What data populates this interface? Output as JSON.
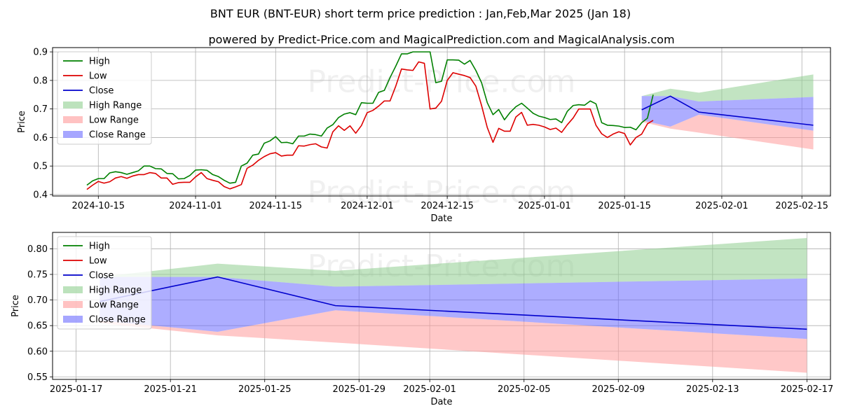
{
  "header": {
    "title": "BNT EUR (BNT-EUR) short term price prediction : Jan,Feb,Mar 2025 (Jan 18)",
    "subtitle": "powered by Predict-Price.com and MagicalPrediction.com and MagicalAnalysis.com"
  },
  "watermark": {
    "text": "Predict-Price.com"
  },
  "colors": {
    "high": "#008000",
    "low": "#dd0000",
    "close": "#0000cc",
    "high_range": "#8fce8f",
    "low_range": "#ff9a9a",
    "close_range": "#6a6aff"
  },
  "legend": {
    "items": [
      {
        "label": "High",
        "kind": "line",
        "color_key": "high"
      },
      {
        "label": "Low",
        "kind": "line",
        "color_key": "low"
      },
      {
        "label": "Close",
        "kind": "line",
        "color_key": "close"
      },
      {
        "label": "High Range",
        "kind": "patch",
        "color_key": "high_range"
      },
      {
        "label": "Low Range",
        "kind": "patch",
        "color_key": "low_range"
      },
      {
        "label": "Close Range",
        "kind": "patch",
        "color_key": "close_range"
      }
    ]
  },
  "chart_data": [
    {
      "type": "line",
      "title": "",
      "xlabel": "Date",
      "ylabel": "Price",
      "x_axis": {
        "type": "date",
        "start": "2024-10-07",
        "end": "2025-02-20"
      },
      "ylim": [
        0.395,
        0.915
      ],
      "x_ticks": [
        "2024-10-15",
        "2024-11-01",
        "2024-11-15",
        "2024-12-01",
        "2024-12-15",
        "2025-01-01",
        "2025-01-15",
        "2025-02-01",
        "2025-02-15"
      ],
      "y_ticks": [
        0.4,
        0.5,
        0.6,
        0.7,
        0.8,
        0.9
      ],
      "grid": true,
      "legend_position": "upper-left",
      "history": {
        "start_date": "2024-10-13",
        "high": [
          0.433,
          0.448,
          0.456,
          0.456,
          0.476,
          0.48,
          0.477,
          0.471,
          0.477,
          0.483,
          0.5,
          0.5,
          0.491,
          0.49,
          0.474,
          0.473,
          0.455,
          0.456,
          0.467,
          0.486,
          0.487,
          0.485,
          0.47,
          0.463,
          0.45,
          0.44,
          0.443,
          0.5,
          0.51,
          0.538,
          0.542,
          0.58,
          0.588,
          0.603,
          0.582,
          0.583,
          0.578,
          0.605,
          0.605,
          0.612,
          0.61,
          0.605,
          0.633,
          0.645,
          0.67,
          0.682,
          0.687,
          0.68,
          0.722,
          0.72,
          0.72,
          0.758,
          0.765,
          0.81,
          0.85,
          0.893,
          0.893,
          0.9,
          0.9,
          0.9,
          0.9,
          0.792,
          0.797,
          0.872,
          0.872,
          0.871,
          0.857,
          0.87,
          0.835,
          0.792,
          0.722,
          0.68,
          0.698,
          0.662,
          0.688,
          0.708,
          0.72,
          0.703,
          0.685,
          0.675,
          0.67,
          0.663,
          0.665,
          0.652,
          0.692,
          0.712,
          0.715,
          0.713,
          0.728,
          0.718,
          0.652,
          0.643,
          0.642,
          0.64,
          0.635,
          0.636,
          0.627,
          0.652,
          0.668,
          0.75
        ],
        "low": [
          0.418,
          0.433,
          0.446,
          0.44,
          0.445,
          0.458,
          0.463,
          0.457,
          0.465,
          0.47,
          0.47,
          0.477,
          0.474,
          0.458,
          0.458,
          0.436,
          0.442,
          0.443,
          0.443,
          0.462,
          0.477,
          0.456,
          0.45,
          0.445,
          0.428,
          0.42,
          0.427,
          0.435,
          0.492,
          0.503,
          0.52,
          0.533,
          0.543,
          0.547,
          0.535,
          0.538,
          0.538,
          0.571,
          0.57,
          0.575,
          0.578,
          0.567,
          0.563,
          0.62,
          0.641,
          0.625,
          0.641,
          0.615,
          0.642,
          0.687,
          0.695,
          0.71,
          0.728,
          0.728,
          0.78,
          0.84,
          0.837,
          0.835,
          0.865,
          0.86,
          0.7,
          0.703,
          0.727,
          0.8,
          0.827,
          0.822,
          0.817,
          0.81,
          0.78,
          0.712,
          0.635,
          0.583,
          0.632,
          0.622,
          0.622,
          0.672,
          0.688,
          0.643,
          0.646,
          0.643,
          0.637,
          0.628,
          0.633,
          0.618,
          0.645,
          0.668,
          0.7,
          0.7,
          0.7,
          0.643,
          0.613,
          0.6,
          0.612,
          0.62,
          0.614,
          0.574,
          0.6,
          0.612,
          0.648,
          0.66
        ]
      },
      "forecast": {
        "dates": [
          "2025-01-18",
          "2025-01-23",
          "2025-01-28",
          "2025-02-17"
        ],
        "close": [
          0.697,
          0.745,
          0.689,
          0.643
        ],
        "high_range_upper": [
          0.745,
          0.771,
          0.757,
          0.821
        ],
        "close_range_upper": [
          0.745,
          0.745,
          0.726,
          0.742
        ],
        "close_range_lower": [
          0.66,
          0.638,
          0.68,
          0.624
        ],
        "low_range_lower": [
          0.655,
          0.631,
          0.617,
          0.558
        ]
      }
    },
    {
      "type": "line",
      "title": "",
      "xlabel": "Date",
      "ylabel": "Price",
      "x_axis": {
        "type": "date",
        "start": "2025-01-16",
        "end": "2025-02-18"
      },
      "ylim": [
        0.545,
        0.832
      ],
      "x_ticks": [
        "2025-01-17",
        "2025-01-21",
        "2025-01-25",
        "2025-01-29",
        "2025-02-01",
        "2025-02-05",
        "2025-02-09",
        "2025-02-13",
        "2025-02-17"
      ],
      "y_ticks": [
        0.55,
        0.6,
        0.65,
        0.7,
        0.75,
        0.8
      ],
      "y_tick_labels": [
        "0.55",
        "0.60",
        "0.65",
        "0.70",
        "0.75",
        "0.80"
      ],
      "grid": true,
      "legend_position": "upper-left",
      "forecast": {
        "dates": [
          "2025-01-18",
          "2025-01-23",
          "2025-01-28",
          "2025-02-17"
        ],
        "close": [
          0.697,
          0.745,
          0.689,
          0.643
        ],
        "high_range_upper": [
          0.745,
          0.771,
          0.757,
          0.821
        ],
        "close_range_upper": [
          0.745,
          0.745,
          0.726,
          0.742
        ],
        "close_range_lower": [
          0.66,
          0.638,
          0.68,
          0.624
        ],
        "low_range_lower": [
          0.655,
          0.631,
          0.617,
          0.558
        ]
      }
    }
  ]
}
